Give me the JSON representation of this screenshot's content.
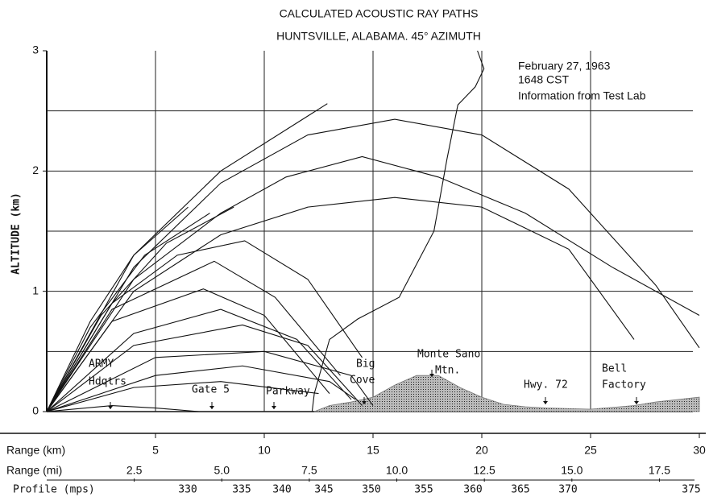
{
  "chart_data": {
    "type": "line",
    "title": "CALCULATED ACOUSTIC RAY PATHS",
    "subtitle": "HUNTSVILLE, ALABAMA. 45° AZIMUTH",
    "ylabel": "ALTITUDE (km)",
    "notes": [
      "February 27, 1963",
      "1648 CST",
      "Information from Test Lab"
    ],
    "site_labels": [
      "ARMY",
      "Hdqtrs",
      "Gate 5",
      "Parkway",
      "Big",
      "Cove",
      "Monte Sano",
      "Mtn.",
      "Hwy. 72",
      "Bell",
      "Factory"
    ],
    "xlim": [
      0,
      30
    ],
    "ylim": [
      0,
      3
    ],
    "yticks": [
      0,
      1,
      2,
      3
    ],
    "ygrid": [
      0.5,
      1,
      1.5,
      2,
      2.5
    ],
    "km_label": "Range (km)",
    "xticks": [
      5,
      10,
      15,
      20,
      25,
      30
    ],
    "mi_label": "Range (mi)",
    "mi_xlim": [
      0,
      18.64
    ],
    "mi_ticks": [
      2.5,
      {
        "value": 5,
        "label": "5.0"
      },
      7.5,
      {
        "value": 10,
        "label": "10.0"
      },
      12.5,
      {
        "value": 15,
        "label": "15.0"
      },
      17.5
    ],
    "profile_label": "Profile (mps)",
    "profile_ticks": [
      330,
      335,
      340,
      345,
      350,
      355,
      360,
      365,
      370,
      375
    ],
    "color": "#111111",
    "series": [
      {
        "x": [
          0,
          4,
          8,
          12,
          16,
          20,
          24,
          28,
          30
        ],
        "y": [
          0,
          1.2,
          1.9,
          2.3,
          2.43,
          2.3,
          1.85,
          1.05,
          0.53
        ]
      },
      {
        "x": [
          0,
          4,
          8,
          11,
          14.5,
          18,
          22,
          26,
          30
        ],
        "y": [
          0,
          1.1,
          1.65,
          1.95,
          2.12,
          1.95,
          1.65,
          1.2,
          0.8
        ]
      },
      {
        "x": [
          0,
          4,
          8,
          12,
          16,
          20,
          24,
          27
        ],
        "y": [
          0,
          1.0,
          1.47,
          1.7,
          1.78,
          1.7,
          1.35,
          0.6
        ]
      },
      {
        "x": [
          0,
          3,
          6,
          9.1,
          12,
          14.5
        ],
        "y": [
          0,
          0.9,
          1.3,
          1.42,
          1.1,
          0.45
        ]
      },
      {
        "x": [
          0,
          3,
          7.7,
          10.5,
          13.5
        ],
        "y": [
          0,
          0.85,
          1.25,
          0.95,
          0.3
        ]
      },
      {
        "x": [
          0,
          3,
          7.2,
          10,
          13
        ],
        "y": [
          0,
          0.75,
          1.02,
          0.8,
          0.15
        ]
      },
      {
        "x": [
          0,
          4,
          8,
          11.5,
          14
        ],
        "y": [
          0,
          0.65,
          0.85,
          0.6,
          0.1
        ]
      },
      {
        "x": [
          0,
          4,
          9,
          12,
          14.5
        ],
        "y": [
          0,
          0.55,
          0.72,
          0.55,
          0.05
        ]
      },
      {
        "x": [
          0,
          5,
          10,
          14,
          15
        ],
        "y": [
          0,
          0.45,
          0.5,
          0.3,
          0.05
        ]
      },
      {
        "x": [
          0,
          5,
          9,
          13,
          14.2
        ],
        "y": [
          0,
          0.3,
          0.38,
          0.25,
          0.1
        ]
      },
      {
        "x": [
          0,
          4,
          8,
          12.5
        ],
        "y": [
          0,
          0.2,
          0.25,
          0.15
        ]
      },
      {
        "x": [
          0,
          3,
          5,
          7
        ],
        "y": [
          0,
          0.05,
          0.03,
          0
        ]
      },
      {
        "x": [
          0,
          2,
          4,
          6.5
        ],
        "y": [
          0,
          0.75,
          1.3,
          1.7
        ]
      },
      {
        "x": [
          0,
          2,
          4.5,
          7.5
        ],
        "y": [
          0,
          0.7,
          1.3,
          1.65
        ]
      },
      {
        "x": [
          0,
          2.5,
          5.5,
          8.6
        ],
        "y": [
          0,
          0.8,
          1.4,
          1.7
        ]
      },
      {
        "x": [
          0,
          4,
          8,
          12.9
        ],
        "y": [
          0,
          1.3,
          2.0,
          2.56
        ]
      },
      {
        "x": [
          12.2,
          12.3,
          13.0,
          14.3,
          16.2,
          17.8,
          18.4,
          18.9,
          19.7,
          20.1,
          19.8
        ],
        "y": [
          0,
          0.15,
          0.6,
          0.77,
          0.95,
          1.5,
          2.1,
          2.55,
          2.7,
          2.85,
          3.0
        ]
      }
    ],
    "terrain": {
      "x": [
        12.3,
        13,
        14,
        15,
        16,
        17,
        18,
        19,
        20,
        21,
        22,
        23,
        25,
        27,
        28,
        30
      ],
      "y": [
        0,
        0.05,
        0.08,
        0.12,
        0.22,
        0.3,
        0.3,
        0.2,
        0.12,
        0.06,
        0.04,
        0.03,
        0.02,
        0.05,
        0.08,
        0.12
      ],
      "color": "#777777"
    }
  }
}
